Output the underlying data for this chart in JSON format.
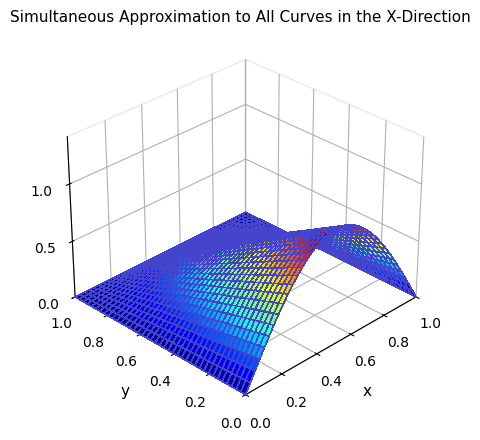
{
  "title": "Simultaneous Approximation to All Curves in the X-Direction",
  "xlabel": "x",
  "ylabel": "y",
  "x_range": [
    0,
    1
  ],
  "y_range": [
    0,
    1
  ],
  "n_points": 40,
  "colormap": "jet",
  "background_color": "white",
  "title_fontsize": 11,
  "axis_label_fontsize": 11,
  "elev": 30,
  "azim": -135,
  "xticks": [
    0,
    0.2,
    0.4,
    0.6,
    0.8,
    1.0
  ],
  "yticks": [
    0,
    0.2,
    0.4,
    0.6,
    0.8,
    1.0
  ],
  "zticks": [
    0,
    0.5,
    1.0
  ],
  "zlim": [
    0,
    1.4
  ]
}
